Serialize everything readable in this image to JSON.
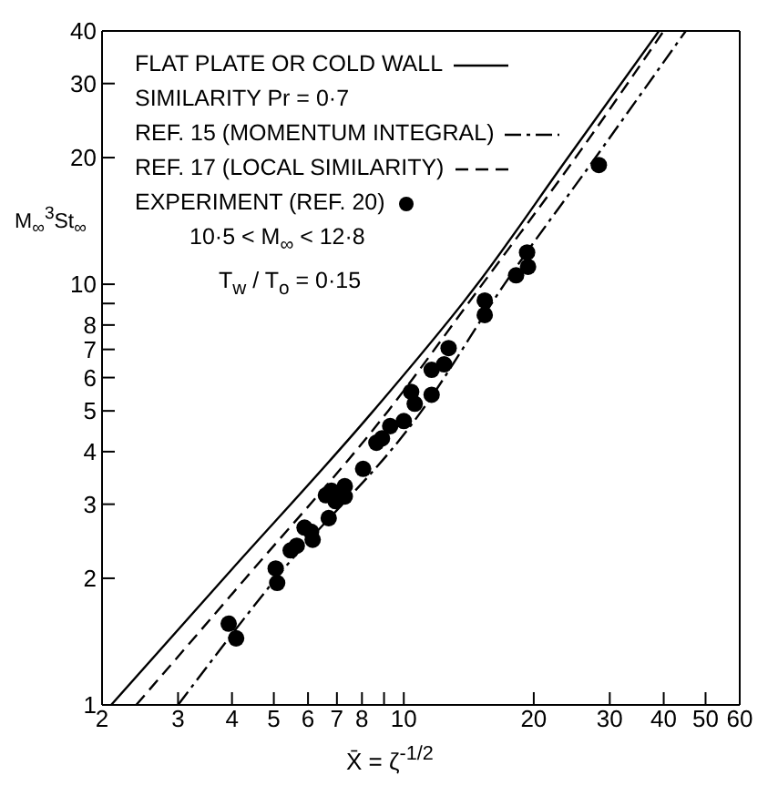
{
  "chart_data": {
    "type": "line",
    "xlabel": "X̄ = ζ$^{-1/2}$",
    "ylabel": "M$_{∞}$$^{3}$St$_{∞}$",
    "log": "xy",
    "legend": "top left",
    "xlim": [
      2,
      60
    ],
    "xticks": [
      2,
      3,
      4,
      5,
      6,
      7,
      8,
      {
        "value": 9,
        "label": null
      },
      10,
      20,
      30,
      40,
      50,
      60
    ],
    "ylim": [
      1,
      40
    ],
    "yticks": [
      1,
      2,
      3,
      4,
      5,
      6,
      7,
      8,
      {
        "value": 9,
        "label": null
      },
      10,
      20,
      30,
      40
    ],
    "annotations": [
      "SIMILARITY  Pr = 0·7",
      "10·5 < M$_{∞}$ < 12·8",
      "T$_{w}$ / T$_{o}$ = 0·15"
    ],
    "series": [
      {
        "name": "FLAT PLATE OR COLD WALL",
        "line_style": "solid",
        "marker": "none",
        "color": "#000000",
        "x": [
          2.1,
          3.83,
          8.5,
          14.8,
          24,
          39
        ],
        "values": [
          1,
          2,
          5,
          10,
          20,
          40
        ]
      },
      {
        "name": "REF. 15 (MOMENTUM INTEGRAL)",
        "line_style": "dashdot",
        "marker": "none",
        "color": "#000000",
        "x": [
          3.0,
          5.06,
          11.0,
          17.1,
          27.8,
          45
        ],
        "values": [
          1,
          2,
          5,
          10,
          20,
          40
        ]
      },
      {
        "name": "REF. 17 (LOCAL SIMILARITY)",
        "line_style": "dashed",
        "marker": "none",
        "color": "#000000",
        "x": [
          2.4,
          4.3,
          9.2,
          15.2,
          25,
          40
        ],
        "values": [
          1,
          2,
          5,
          10,
          20,
          40
        ]
      },
      {
        "name": "EXPERIMENT (REF. 20)",
        "type": "scatter",
        "marker": "circle",
        "color": "#000000",
        "x": [
          3.93,
          4.09,
          5.05,
          5.09,
          5.47,
          5.65,
          5.89,
          6.1,
          6.15,
          6.7,
          6.6,
          6.8,
          6.95,
          7.3,
          7.3,
          8.05,
          8.64,
          8.9,
          9.3,
          10.0,
          10.4,
          10.6,
          11.6,
          11.6,
          12.4,
          12.7,
          15.4,
          15.4,
          18.2,
          19.3,
          19.4,
          28.3
        ],
        "values": [
          1.56,
          1.44,
          2.11,
          1.95,
          2.33,
          2.39,
          2.64,
          2.58,
          2.47,
          2.78,
          3.15,
          3.23,
          3.05,
          3.13,
          3.31,
          3.64,
          4.2,
          4.3,
          4.6,
          4.73,
          5.55,
          5.2,
          5.46,
          6.26,
          6.45,
          7.05,
          9.15,
          8.45,
          10.5,
          11.9,
          11.0,
          19.2
        ]
      }
    ]
  }
}
